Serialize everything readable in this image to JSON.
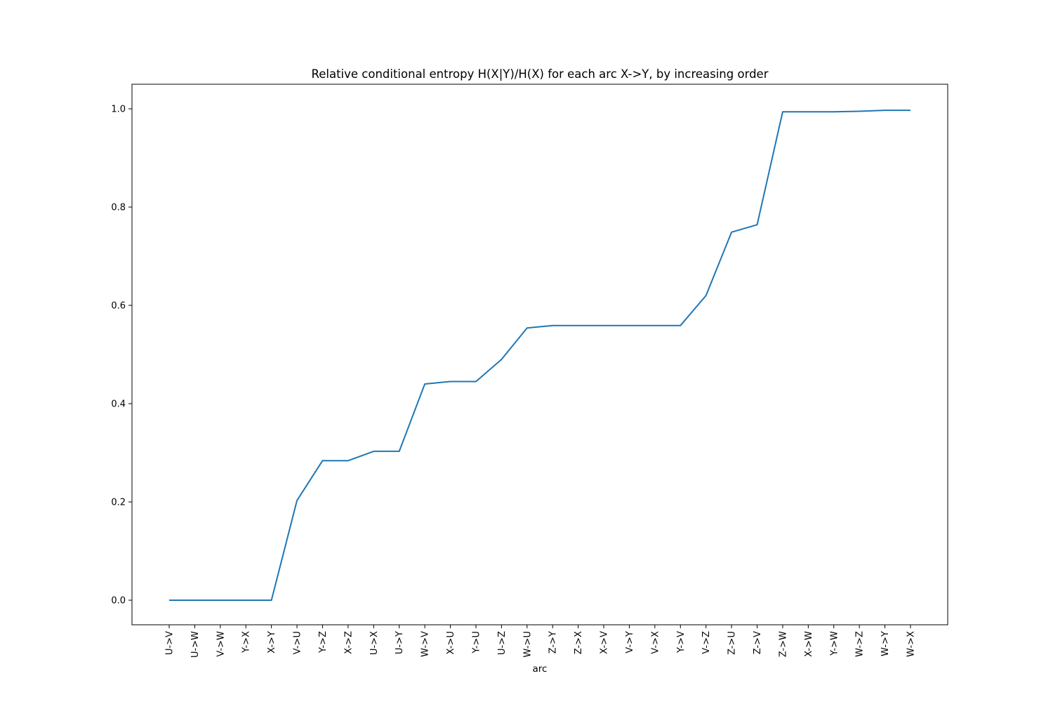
{
  "chart_data": {
    "type": "line",
    "title": "Relative conditional entropy H(X|Y)/H(X) for each arc X->Y, by increasing order",
    "xlabel": "arc",
    "ylabel": "",
    "categories": [
      "U->V",
      "U->W",
      "V->W",
      "Y->X",
      "X->Y",
      "V->U",
      "Y->Z",
      "X->Z",
      "U->X",
      "U->Y",
      "W->V",
      "X->U",
      "Y->U",
      "U->Z",
      "W->U",
      "Z->Y",
      "Z->X",
      "X->V",
      "V->Y",
      "V->X",
      "Y->V",
      "V->Z",
      "Z->U",
      "Z->V",
      "Z->W",
      "X->W",
      "Y->W",
      "W->Z",
      "W->Y",
      "W->X"
    ],
    "series": [
      {
        "values": [
          0.0,
          0.0,
          0.0,
          0.0,
          0.0,
          0.203,
          0.284,
          0.284,
          0.303,
          0.303,
          0.44,
          0.445,
          0.445,
          0.49,
          0.554,
          0.559,
          0.559,
          0.559,
          0.559,
          0.559,
          0.559,
          0.62,
          0.749,
          0.764,
          0.994,
          0.994,
          0.994,
          0.995,
          0.997,
          0.997
        ],
        "color": "#1f77b4"
      }
    ],
    "ylim": [
      -0.05,
      1.05
    ],
    "yticks": [
      0.0,
      0.2,
      0.4,
      0.6,
      0.8,
      1.0
    ],
    "ytick_labels": [
      "0.0",
      "0.2",
      "0.4",
      "0.6",
      "0.8",
      "1.0"
    ],
    "grid": false,
    "legend": "none"
  }
}
